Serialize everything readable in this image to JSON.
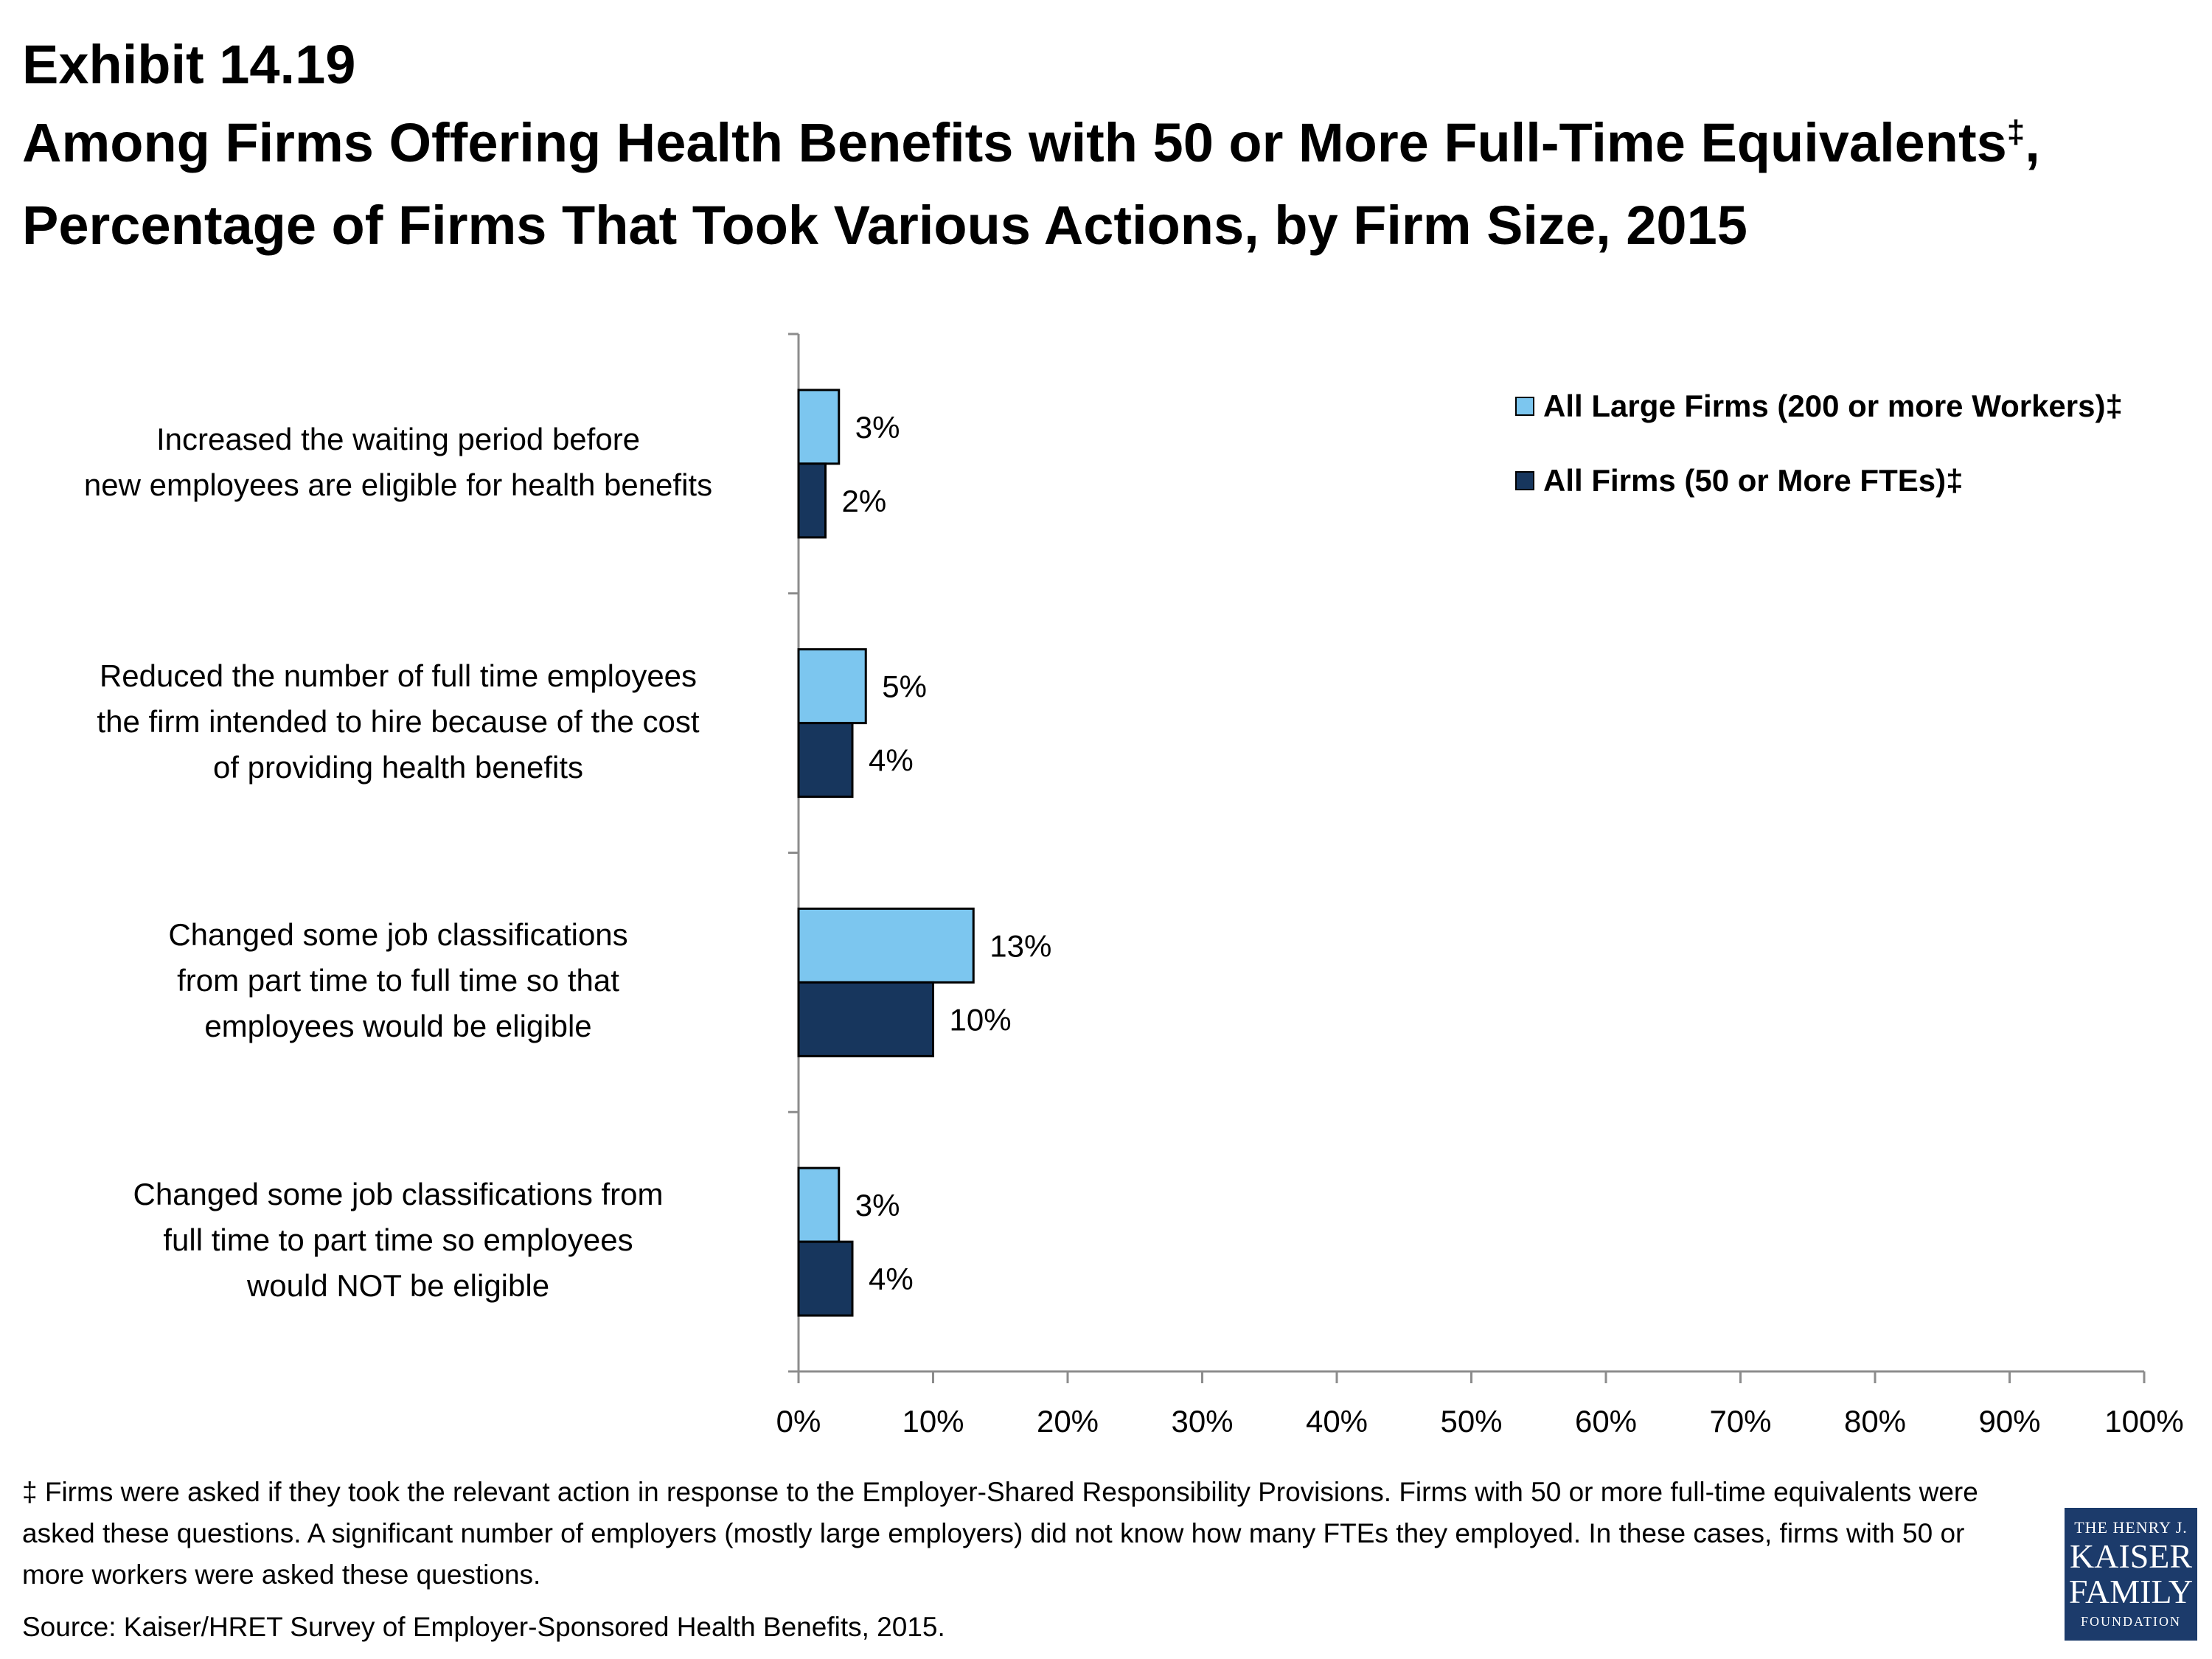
{
  "header": {
    "exhibit": "Exhibit 14.19",
    "title": "Among Firms Offering Health Benefits with 50 or More Full-Time Equivalents",
    "title_dagger": "‡",
    "title_rest": ", Percentage of Firms That Took Various Actions, by Firm Size, 2015"
  },
  "chart_data": {
    "type": "bar",
    "orientation": "horizontal",
    "categories": [
      "Increased the waiting period before\nnew employees are eligible for health benefits",
      "Reduced the number of full time employees\nthe firm intended to hire because of the cost\nof providing health benefits",
      "Changed some job classifications\nfrom part time to full time so that\nemployees would be eligible",
      "Changed some job classifications from\nfull time to part time so employees\nwould NOT be eligible"
    ],
    "series": [
      {
        "name": "All Large Firms (200 or more Workers)‡",
        "color": "#7cc6ef",
        "values": [
          3,
          5,
          13,
          3
        ],
        "labels": [
          "3%",
          "5%",
          "13%",
          "3%"
        ]
      },
      {
        "name": "All Firms (50 or More FTEs)‡",
        "color": "#17365d",
        "values": [
          2,
          4,
          10,
          4
        ],
        "labels": [
          "2%",
          "4%",
          "10%",
          "4%"
        ]
      }
    ],
    "xlim": [
      0,
      100
    ],
    "xticks": [
      0,
      10,
      20,
      30,
      40,
      50,
      60,
      70,
      80,
      90,
      100
    ],
    "xtick_labels": [
      "0%",
      "10%",
      "20%",
      "30%",
      "40%",
      "50%",
      "60%",
      "70%",
      "80%",
      "90%",
      "100%"
    ],
    "legend_position": "top-right",
    "grid": false
  },
  "footnote": "‡ Firms  were asked if they took the relevant action in response to the Employer-Shared Responsibility Provisions. Firms with 50 or more full-time equivalents were asked these questions.  A significant number of employers (mostly large employers) did not know how many FTEs they employed. In these cases, firms with 50 or more workers were asked these questions.",
  "source": "Source: Kaiser/HRET Survey of Employer-Sponsored Health Benefits, 2015.",
  "logo": {
    "top": "THE HENRY J.",
    "middle1": "KAISER",
    "middle2": "FAMILY",
    "bottom": "FOUNDATION"
  }
}
